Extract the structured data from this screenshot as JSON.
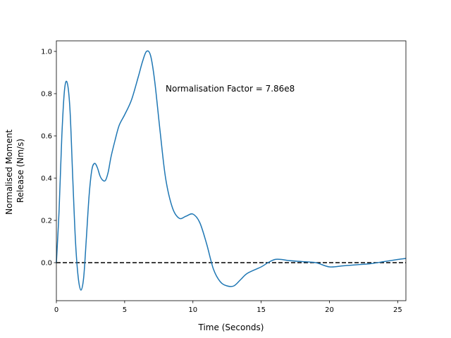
{
  "chart_data": {
    "type": "line",
    "title": "",
    "xlabel": "Time (Seconds)",
    "ylabel_lines": [
      "Normalised Moment",
      "Release (Nm/s)"
    ],
    "xlim": [
      0,
      25.6
    ],
    "ylim": [
      -0.18,
      1.05
    ],
    "xticks": [
      0,
      5,
      10,
      15,
      20,
      25
    ],
    "yticks": [
      0.0,
      0.2,
      0.4,
      0.6,
      0.8,
      1.0
    ],
    "xtick_labels": [
      "0",
      "5",
      "10",
      "15",
      "20",
      "25"
    ],
    "ytick_labels": [
      "0.0",
      "0.2",
      "0.4",
      "0.6",
      "0.8",
      "1.0"
    ],
    "grid": false,
    "annotation": {
      "text": "Normalisation Factor = 7.86e8",
      "x": 8.0,
      "y": 0.81
    },
    "reference_line": {
      "y": 0.0,
      "style": "dashed",
      "color": "#000000"
    },
    "series": [
      {
        "color": "#1f77b4",
        "x": [
          0.0,
          0.2,
          0.4,
          0.6,
          0.8,
          1.0,
          1.2,
          1.4,
          1.6,
          1.8,
          2.0,
          2.2,
          2.4,
          2.6,
          2.8,
          3.0,
          3.2,
          3.4,
          3.6,
          3.8,
          4.0,
          4.3,
          4.6,
          5.0,
          5.5,
          6.0,
          6.3,
          6.6,
          6.9,
          7.2,
          7.6,
          8.0,
          8.5,
          9.0,
          9.5,
          10.0,
          10.5,
          11.0,
          11.5,
          12.0,
          12.5,
          13.0,
          13.5,
          14.0,
          15.0,
          15.5,
          16.0,
          16.5,
          17.0,
          18.0,
          19.0,
          20.0,
          21.0,
          22.0,
          23.0,
          24.0,
          25.0,
          25.6
        ],
        "values": [
          0.0,
          0.25,
          0.6,
          0.82,
          0.85,
          0.72,
          0.4,
          0.1,
          -0.07,
          -0.13,
          -0.07,
          0.12,
          0.32,
          0.44,
          0.47,
          0.45,
          0.41,
          0.39,
          0.39,
          0.43,
          0.5,
          0.58,
          0.65,
          0.7,
          0.77,
          0.88,
          0.95,
          1.0,
          0.98,
          0.86,
          0.62,
          0.4,
          0.26,
          0.21,
          0.22,
          0.23,
          0.19,
          0.09,
          -0.03,
          -0.09,
          -0.11,
          -0.11,
          -0.08,
          -0.05,
          -0.02,
          0.0,
          0.015,
          0.015,
          0.01,
          0.005,
          0.0,
          -0.02,
          -0.015,
          -0.01,
          -0.005,
          0.005,
          0.015,
          0.02
        ]
      }
    ]
  }
}
